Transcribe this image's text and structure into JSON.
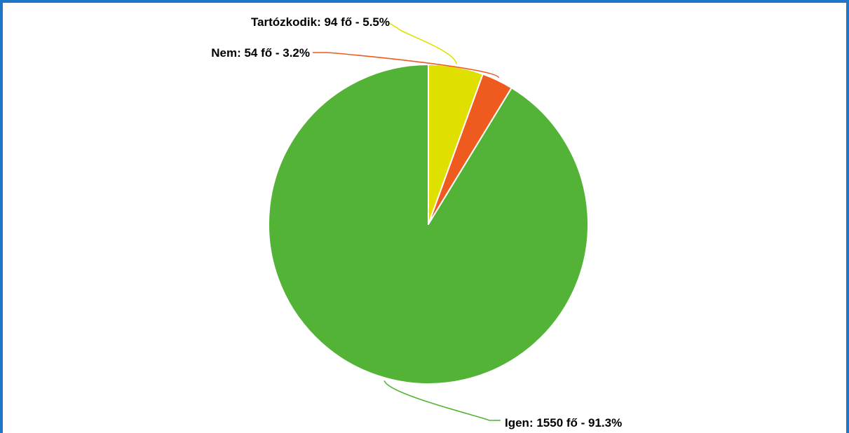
{
  "chart_data": {
    "type": "pie",
    "title": "",
    "slices": [
      {
        "label": "Igen",
        "count": 1550,
        "unit": "fő",
        "percent": 91.3,
        "color": "#52b336",
        "display": "Igen: 1550 fő - 91.3%"
      },
      {
        "label": "Nem",
        "count": 54,
        "unit": "fő",
        "percent": 3.2,
        "color": "#ef5a1f",
        "display": "Nem: 54 fő - 3.2%"
      },
      {
        "label": "Tartózkodik",
        "count": 94,
        "unit": "fő",
        "percent": 5.5,
        "color": "#dfe000",
        "display": "Tartózkodik: 94 fő - 5.5%"
      }
    ],
    "legend": "none",
    "start_angle": "top, counter-clockwise"
  },
  "colors": {
    "frame_border": "#1e74c5",
    "background": "#ffffff"
  }
}
